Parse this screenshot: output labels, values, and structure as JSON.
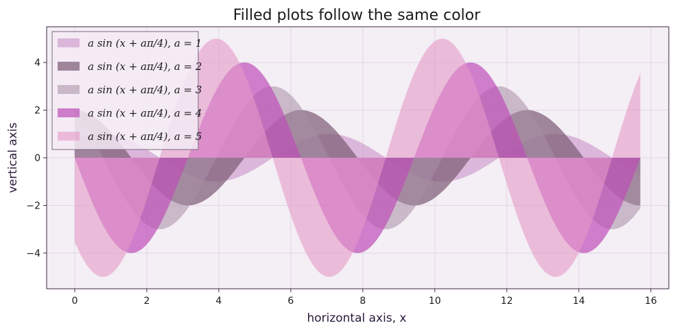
{
  "chart_data": {
    "type": "area",
    "title": "Filled plots follow the same color",
    "xlabel": "horizontal axis, x",
    "ylabel": "vertical axis",
    "xlim": [
      -0.78,
      16.5
    ],
    "ylim": [
      -5.5,
      5.5
    ],
    "xticks": [
      0,
      2,
      4,
      6,
      8,
      10,
      12,
      14,
      16
    ],
    "xtick_labels": [
      "0",
      "2",
      "4",
      "6",
      "8",
      "10",
      "12",
      "14",
      "16"
    ],
    "yticks": [
      -4,
      -2,
      0,
      2,
      4
    ],
    "ytick_labels": [
      "−4",
      "−2",
      "0",
      "2",
      "4"
    ],
    "grid": true,
    "legend_position": "upper-left",
    "x_range": [
      0,
      15.708
    ],
    "function": "a·sin(x + aπ/4)",
    "fill_baseline": 0,
    "series": [
      {
        "label": "a sin (x + aπ/4),  a = 1",
        "a": 1,
        "color": "#c78bc4",
        "opacity": 0.55
      },
      {
        "label": "a sin (x + aπ/4),  a = 2",
        "a": 2,
        "color": "#7a5a74",
        "opacity": 0.7
      },
      {
        "label": "a sin (x + aπ/4),  a = 3",
        "a": 3,
        "color": "#a88ea4",
        "opacity": 0.55
      },
      {
        "label": "a sin (x + aπ/4),  a = 4",
        "a": 4,
        "color": "#bd4fb8",
        "opacity": 0.7
      },
      {
        "label": "a sin (x + aπ/4),  a = 5",
        "a": 5,
        "color": "#e59ac8",
        "opacity": 0.6
      }
    ],
    "colors": {
      "plot_background": "#f4eef5",
      "grid": "#e2d8e4",
      "axes_edge": "#3a2a40",
      "legend_edge": "#7a6a80",
      "legend_background": "#f3eaf3"
    }
  }
}
